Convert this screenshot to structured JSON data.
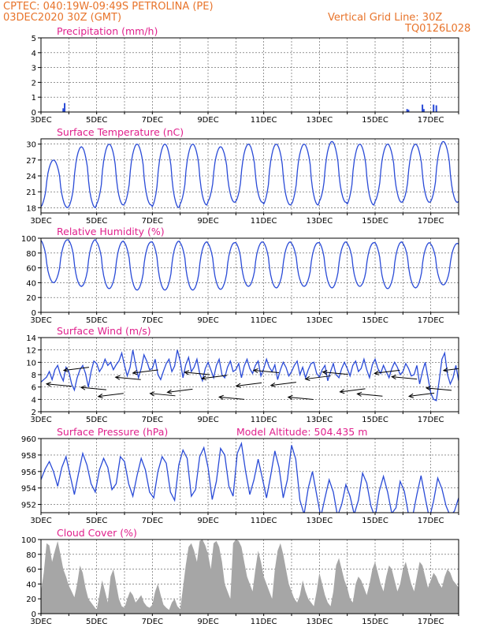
{
  "header": {
    "line1_left": "CPTEC:   040:19W-09:49S   PETROLINA (PE)",
    "line2_left": "03DEC2020 30Z (GMT)",
    "line1_right": "Vertical Grid Line: 30Z",
    "line2_right": "TQ0126L028"
  },
  "colors": {
    "header": "#e8742b",
    "title": "#e0208c",
    "line": "#2a4bd7",
    "cloud": "#a6a6a6",
    "arrow": "#000000",
    "grid": "#555555"
  },
  "x_tick_labels": [
    "3DEC",
    "5DEC",
    "7DEC",
    "9DEC",
    "11DEC",
    "13DEC",
    "15DEC",
    "17DEC"
  ],
  "chart_data": [
    {
      "id": "precip",
      "type": "bar",
      "title": "Precipitation (mm/h)",
      "ylim": [
        0,
        5
      ],
      "yticks": [
        0,
        1,
        2,
        3,
        4,
        5
      ],
      "x": [
        0.8,
        0.85,
        13.15,
        13.2,
        13.7,
        13.75,
        14.1,
        14.2
      ],
      "values": [
        0.25,
        0.6,
        0.2,
        0.15,
        0.5,
        0.2,
        0.5,
        0.45
      ]
    },
    {
      "id": "temp",
      "type": "line",
      "title": "Surface Temperature (nC)",
      "ylim": [
        17,
        31
      ],
      "yticks": [
        18,
        21,
        24,
        27,
        30
      ],
      "pattern": "diurnal",
      "daily_max": [
        27,
        29.5,
        30,
        30,
        30,
        30,
        29.5,
        30,
        30,
        30,
        30.5,
        30,
        30,
        30,
        30.5,
        30,
        28
      ],
      "daily_min": [
        18,
        18,
        18.5,
        18.5,
        18,
        18.5,
        19,
        19,
        18.5,
        18.5,
        19,
        18.5,
        19,
        19,
        19,
        19,
        20
      ]
    },
    {
      "id": "rh",
      "type": "line",
      "title": "Relative Humidity (%)",
      "ylim": [
        0,
        100
      ],
      "yticks": [
        0,
        20,
        40,
        60,
        80,
        100
      ],
      "pattern": "diurnal-inverse",
      "daily_max": [
        98,
        98,
        96,
        95,
        96,
        95,
        94,
        95,
        95,
        94,
        95,
        94,
        95,
        94,
        93,
        93,
        90
      ],
      "daily_min": [
        40,
        35,
        32,
        30,
        30,
        30,
        31,
        35,
        33,
        35,
        33,
        35,
        32,
        33,
        37,
        38,
        45
      ]
    },
    {
      "id": "wind",
      "type": "line",
      "title": "Surface Wind (m/s)",
      "ylim": [
        2,
        14
      ],
      "yticks": [
        2,
        4,
        6,
        8,
        10,
        12,
        14
      ],
      "x": [
        0,
        0.1,
        0.2,
        0.3,
        0.4,
        0.5,
        0.6,
        0.7,
        0.8,
        0.9,
        1.0,
        1.1,
        1.2,
        1.3,
        1.4,
        1.5,
        1.6,
        1.7,
        1.8,
        1.9,
        2.0,
        2.1,
        2.2,
        2.3,
        2.4,
        2.5,
        2.6,
        2.7,
        2.8,
        2.9,
        3.0,
        3.1,
        3.2,
        3.3,
        3.4,
        3.5,
        3.6,
        3.7,
        3.8,
        3.9,
        4.0,
        4.1,
        4.2,
        4.3,
        4.4,
        4.5,
        4.6,
        4.7,
        4.8,
        4.9,
        5.0,
        5.1,
        5.2,
        5.3,
        5.4,
        5.5,
        5.6,
        5.7,
        5.8,
        5.9,
        6.0,
        6.1,
        6.2,
        6.3,
        6.4,
        6.5,
        6.6,
        6.7,
        6.8,
        6.9,
        7.0,
        7.1,
        7.2,
        7.3,
        7.4,
        7.5,
        7.6,
        7.7,
        7.8,
        7.9,
        8.0,
        8.1,
        8.2,
        8.3,
        8.4,
        8.5,
        8.6,
        8.7,
        8.8,
        8.9,
        9.0,
        9.1,
        9.2,
        9.3,
        9.4,
        9.5,
        9.6,
        9.7,
        9.8,
        9.9,
        10.0,
        10.1,
        10.2,
        10.3,
        10.4,
        10.5,
        10.6,
        10.7,
        10.8,
        10.9,
        11.0,
        11.1,
        11.2,
        11.3,
        11.4,
        11.5,
        11.6,
        11.7,
        11.8,
        11.9,
        12.0,
        12.1,
        12.2,
        12.3,
        12.4,
        12.5,
        12.6,
        12.7,
        12.8,
        12.9,
        13.0,
        13.1,
        13.2,
        13.3,
        13.4,
        13.5,
        13.6,
        13.7,
        13.8,
        13.9,
        14.0,
        14.1,
        14.2,
        14.3,
        14.4,
        14.5,
        14.6,
        14.7,
        14.8,
        14.9,
        15.0
      ],
      "values": [
        6.8,
        7.2,
        7.6,
        8.5,
        7.2,
        8.8,
        9.5,
        8.0,
        7.0,
        9.2,
        8.5,
        6.5,
        5.5,
        7.5,
        8.8,
        9.5,
        8.2,
        6.0,
        8.5,
        10.2,
        9.8,
        8.5,
        9.2,
        10.5,
        9.5,
        10.0,
        8.8,
        9.6,
        10.2,
        11.5,
        9.5,
        7.8,
        9.2,
        12.0,
        9.6,
        7.5,
        9.0,
        11.2,
        10.2,
        8.8,
        9.0,
        10.5,
        8.0,
        7.2,
        8.6,
        9.8,
        10.5,
        8.5,
        9.4,
        12.0,
        10.2,
        7.5,
        9.6,
        10.8,
        8.5,
        9.2,
        10.5,
        8.2,
        7.0,
        9.0,
        10.0,
        8.8,
        7.5,
        9.5,
        10.5,
        8.0,
        7.5,
        9.2,
        10.2,
        8.5,
        8.8,
        9.8,
        7.5,
        9.4,
        10.5,
        9.0,
        8.2,
        9.5,
        10.2,
        7.8,
        9.0,
        10.5,
        9.2,
        8.5,
        9.6,
        7.2,
        8.8,
        10.0,
        9.2,
        7.8,
        8.5,
        9.5,
        10.2,
        8.0,
        9.2,
        7.5,
        8.8,
        9.8,
        10.0,
        8.2,
        7.6,
        8.8,
        9.5,
        7.0,
        8.5,
        9.8,
        8.0,
        7.5,
        9.0,
        10.0,
        9.0,
        7.8,
        9.5,
        10.2,
        8.5,
        9.0,
        10.5,
        8.8,
        7.5,
        9.6,
        10.5,
        9.0,
        8.2,
        9.5,
        8.5,
        7.5,
        9.0,
        10.0,
        9.2,
        8.0,
        8.5,
        9.8,
        9.0,
        7.8,
        8.0,
        9.5,
        6.5,
        8.5,
        10.0,
        7.5,
        5.0,
        4.0,
        3.8,
        7.0,
        10.5,
        11.5,
        8.0,
        6.5,
        7.5,
        9.5,
        7.0
      ]
    },
    {
      "id": "press",
      "type": "line",
      "title": "Surface Pressure (hPa)",
      "annotation": "Model Altitude: 504.435  m",
      "ylim": [
        951,
        960
      ],
      "yticks": [
        952,
        954,
        956,
        958,
        960
      ],
      "x": [
        0,
        0.15,
        0.3,
        0.45,
        0.6,
        0.75,
        0.9,
        1.05,
        1.2,
        1.35,
        1.5,
        1.65,
        1.8,
        1.95,
        2.1,
        2.25,
        2.4,
        2.55,
        2.7,
        2.85,
        3.0,
        3.15,
        3.3,
        3.45,
        3.6,
        3.75,
        3.9,
        4.05,
        4.2,
        4.35,
        4.5,
        4.65,
        4.8,
        4.95,
        5.1,
        5.25,
        5.4,
        5.55,
        5.7,
        5.85,
        6.0,
        6.15,
        6.3,
        6.45,
        6.6,
        6.75,
        6.9,
        7.05,
        7.2,
        7.35,
        7.5,
        7.65,
        7.8,
        7.95,
        8.1,
        8.25,
        8.4,
        8.55,
        8.7,
        8.85,
        9.0,
        9.15,
        9.3,
        9.45,
        9.6,
        9.75,
        9.9,
        10.05,
        10.2,
        10.35,
        10.5,
        10.65,
        10.8,
        10.95,
        11.1,
        11.25,
        11.4,
        11.55,
        11.7,
        11.85,
        12.0,
        12.15,
        12.3,
        12.45,
        12.6,
        12.75,
        12.9,
        13.05,
        13.2,
        13.35,
        13.5,
        13.65,
        13.8,
        13.95,
        14.1,
        14.25,
        14.4,
        14.55,
        14.7,
        14.85,
        15.0
      ],
      "values": [
        955.0,
        956.3,
        957.2,
        956.0,
        954.2,
        956.5,
        957.8,
        955.5,
        953.2,
        955.8,
        958.2,
        956.8,
        954.5,
        953.5,
        956.2,
        957.6,
        956.5,
        953.8,
        954.5,
        957.8,
        957.2,
        954.5,
        953.0,
        955.5,
        957.6,
        956.2,
        953.5,
        952.8,
        956.0,
        957.8,
        957.0,
        953.5,
        952.5,
        956.8,
        958.6,
        957.6,
        953.0,
        953.8,
        957.8,
        958.9,
        956.5,
        952.6,
        954.8,
        958.8,
        958.0,
        954.2,
        953.0,
        958.2,
        959.4,
        956.0,
        953.2,
        955.0,
        957.5,
        955.2,
        952.8,
        955.5,
        958.5,
        956.5,
        952.8,
        955.0,
        959.2,
        957.5,
        952.5,
        950.8,
        954.0,
        956.0,
        953.2,
        950.5,
        952.8,
        955.0,
        953.5,
        950.6,
        952.0,
        954.4,
        953.0,
        950.8,
        952.5,
        955.8,
        954.6,
        951.8,
        950.4,
        953.6,
        955.4,
        953.5,
        950.9,
        951.6,
        954.8,
        953.6,
        950.8,
        950.6,
        953.2,
        955.5,
        952.8,
        950.3,
        952.4,
        955.2,
        953.9,
        951.8,
        950.6,
        951.2,
        952.8
      ]
    },
    {
      "id": "cloud",
      "type": "area",
      "title": "Cloud Cover (%)",
      "ylim": [
        0,
        100
      ],
      "yticks": [
        0,
        20,
        40,
        60,
        80,
        100
      ],
      "x": [
        0,
        0.1,
        0.2,
        0.3,
        0.4,
        0.5,
        0.6,
        0.7,
        0.8,
        0.9,
        1.0,
        1.1,
        1.2,
        1.3,
        1.4,
        1.5,
        1.6,
        1.7,
        1.8,
        1.9,
        2.0,
        2.1,
        2.2,
        2.3,
        2.4,
        2.5,
        2.6,
        2.7,
        2.8,
        2.9,
        3.0,
        3.1,
        3.2,
        3.3,
        3.4,
        3.5,
        3.6,
        3.7,
        3.8,
        3.9,
        4.0,
        4.1,
        4.2,
        4.3,
        4.4,
        4.5,
        4.6,
        4.7,
        4.8,
        4.9,
        5.0,
        5.1,
        5.2,
        5.3,
        5.4,
        5.5,
        5.6,
        5.7,
        5.8,
        5.9,
        6.0,
        6.1,
        6.2,
        6.3,
        6.4,
        6.5,
        6.6,
        6.7,
        6.8,
        6.9,
        7.0,
        7.1,
        7.2,
        7.3,
        7.4,
        7.5,
        7.6,
        7.7,
        7.8,
        7.9,
        8.0,
        8.1,
        8.2,
        8.3,
        8.4,
        8.5,
        8.6,
        8.7,
        8.8,
        8.9,
        9.0,
        9.1,
        9.2,
        9.3,
        9.4,
        9.5,
        9.6,
        9.7,
        9.8,
        9.9,
        10.0,
        10.1,
        10.2,
        10.3,
        10.4,
        10.5,
        10.6,
        10.7,
        10.8,
        10.9,
        11.0,
        11.1,
        11.2,
        11.3,
        11.4,
        11.5,
        11.6,
        11.7,
        11.8,
        11.9,
        12.0,
        12.1,
        12.2,
        12.3,
        12.4,
        12.5,
        12.6,
        12.7,
        12.8,
        12.9,
        13.0,
        13.1,
        13.2,
        13.3,
        13.4,
        13.5,
        13.6,
        13.7,
        13.8,
        13.9,
        14.0,
        14.1,
        14.2,
        14.3,
        14.4,
        14.5,
        14.6,
        14.7,
        14.8,
        14.9,
        15.0
      ],
      "values": [
        30,
        55,
        95,
        92,
        70,
        85,
        98,
        80,
        60,
        50,
        38,
        30,
        22,
        40,
        65,
        55,
        35,
        20,
        15,
        10,
        5,
        25,
        45,
        30,
        15,
        50,
        60,
        40,
        20,
        10,
        8,
        20,
        30,
        25,
        15,
        20,
        25,
        15,
        10,
        8,
        12,
        30,
        40,
        25,
        12,
        8,
        5,
        15,
        20,
        10,
        6,
        35,
        65,
        90,
        95,
        85,
        70,
        98,
        100,
        92,
        80,
        60,
        95,
        98,
        90,
        70,
        40,
        30,
        20,
        95,
        100,
        98,
        90,
        70,
        50,
        40,
        30,
        60,
        85,
        70,
        50,
        40,
        30,
        20,
        60,
        85,
        95,
        80,
        60,
        40,
        30,
        20,
        15,
        25,
        45,
        30,
        20,
        15,
        10,
        30,
        55,
        40,
        25,
        15,
        10,
        30,
        65,
        75,
        60,
        45,
        35,
        20,
        15,
        40,
        50,
        45,
        35,
        25,
        40,
        60,
        70,
        55,
        40,
        30,
        50,
        65,
        60,
        45,
        30,
        40,
        60,
        70,
        55,
        40,
        30,
        50,
        70,
        65,
        50,
        35,
        45,
        55,
        50,
        40,
        35,
        50,
        60,
        55,
        45,
        40,
        35
      ]
    }
  ]
}
